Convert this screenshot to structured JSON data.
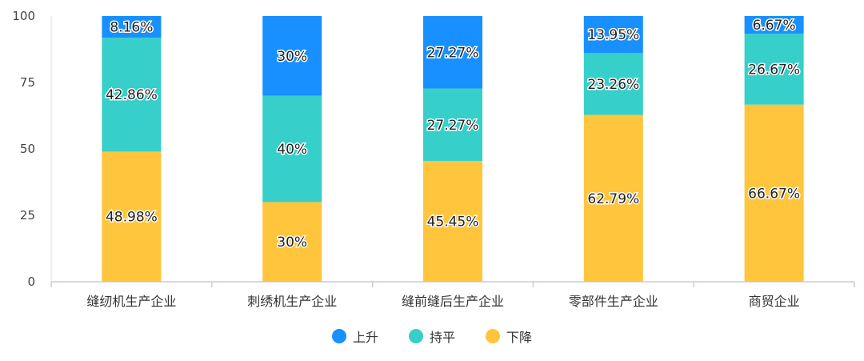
{
  "chart_data": {
    "type": "bar",
    "stacked": true,
    "categories": [
      "缝纫机生产企业",
      "刺绣机生产企业",
      "缝前缝后生产企业",
      "零部件生产企业",
      "商贸企业"
    ],
    "series": [
      {
        "name": "下降",
        "color": "#FFC53D",
        "values": [
          48.98,
          30,
          45.45,
          62.79,
          66.67
        ],
        "labels": [
          "48.98%",
          "30%",
          "45.45%",
          "62.79%",
          "66.67%"
        ]
      },
      {
        "name": "持平",
        "color": "#36CFC9",
        "values": [
          42.86,
          40,
          27.27,
          23.26,
          26.67
        ],
        "labels": [
          "42.86%",
          "40%",
          "27.27%",
          "23.26%",
          "26.67%"
        ]
      },
      {
        "name": "上升",
        "color": "#1890FF",
        "values": [
          8.16,
          30,
          27.27,
          13.95,
          6.67
        ],
        "labels": [
          "8.16%",
          "30%",
          "27.27%",
          "13.95%",
          "6.67%"
        ]
      }
    ],
    "yticks": [
      "0",
      "25",
      "50",
      "75",
      "100"
    ],
    "ylim": [
      0,
      100
    ],
    "grid": false,
    "legend_position": "bottom",
    "legend_order": [
      "上升",
      "持平",
      "下降"
    ]
  }
}
